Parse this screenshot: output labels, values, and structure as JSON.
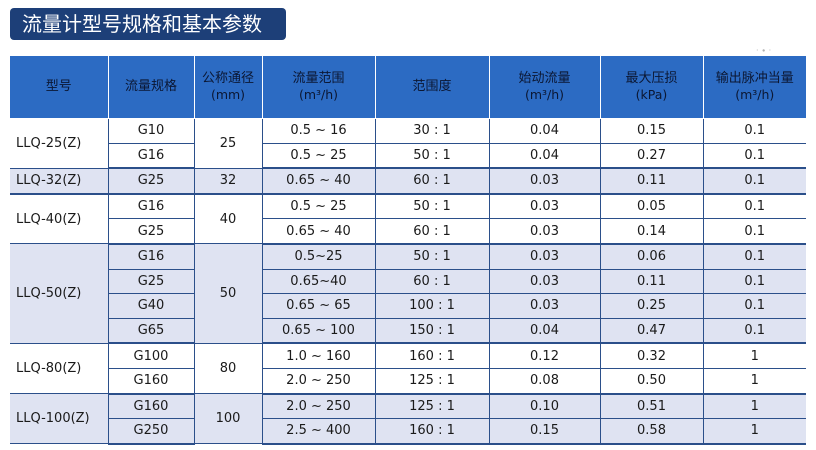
{
  "title": "流量计型号规格和基本参数",
  "table": {
    "headers": {
      "model": "型号",
      "spec": "流量规格",
      "diameter": "公称通径",
      "diameter_unit": "(mm)",
      "range": "流量范围",
      "range_unit": "(m³/h)",
      "rangeability": "范围度",
      "start_flow": "始动流量",
      "start_flow_unit": "(m³/h)",
      "max_loss": "最大压损",
      "max_loss_unit": "(kPa)",
      "pulse": "输出脉冲当量",
      "pulse_unit": "(m³/h)"
    },
    "groups": [
      {
        "model": "LLQ-25(Z)",
        "diameter": "25",
        "shaded": false,
        "rows": [
          {
            "spec": "G10",
            "range": "0.5 ~ 16",
            "rangeability": "30 : 1",
            "start_flow": "0.04",
            "max_loss": "0.15",
            "pulse": "0.1"
          },
          {
            "spec": "G16",
            "range": "0.5 ~ 25",
            "rangeability": "50 : 1",
            "start_flow": "0.04",
            "max_loss": "0.27",
            "pulse": "0.1"
          }
        ]
      },
      {
        "model": "LLQ-32(Z)",
        "diameter": "32",
        "shaded": true,
        "rows": [
          {
            "spec": "G25",
            "range": "0.65 ~ 40",
            "rangeability": "60 : 1",
            "start_flow": "0.03",
            "max_loss": "0.11",
            "pulse": "0.1"
          }
        ]
      },
      {
        "model": "LLQ-40(Z)",
        "diameter": "40",
        "shaded": false,
        "rows": [
          {
            "spec": "G16",
            "range": "0.5 ~ 25",
            "rangeability": "50 : 1",
            "start_flow": "0.03",
            "max_loss": "0.05",
            "pulse": "0.1"
          },
          {
            "spec": "G25",
            "range": "0.65 ~ 40",
            "rangeability": "60 : 1",
            "start_flow": "0.03",
            "max_loss": "0.14",
            "pulse": "0.1"
          }
        ]
      },
      {
        "model": "LLQ-50(Z)",
        "diameter": "50",
        "shaded": true,
        "rows": [
          {
            "spec": "G16",
            "range": "0.5~25",
            "rangeability": "50 : 1",
            "start_flow": "0.03",
            "max_loss": "0.06",
            "pulse": "0.1"
          },
          {
            "spec": "G25",
            "range": "0.65~40",
            "rangeability": "60 : 1",
            "start_flow": "0.03",
            "max_loss": "0.11",
            "pulse": "0.1"
          },
          {
            "spec": "G40",
            "range": "0.65 ~ 65",
            "rangeability": "100 : 1",
            "start_flow": "0.03",
            "max_loss": "0.25",
            "pulse": "0.1"
          },
          {
            "spec": "G65",
            "range": "0.65 ~ 100",
            "rangeability": "150 : 1",
            "start_flow": "0.04",
            "max_loss": "0.47",
            "pulse": "0.1"
          }
        ]
      },
      {
        "model": "LLQ-80(Z)",
        "diameter": "80",
        "shaded": false,
        "rows": [
          {
            "spec": "G100",
            "range": "1.0 ~ 160",
            "rangeability": "160 : 1",
            "start_flow": "0.12",
            "max_loss": "0.32",
            "pulse": "1"
          },
          {
            "spec": "G160",
            "range": "2.0 ~ 250",
            "rangeability": "125 : 1",
            "start_flow": "0.08",
            "max_loss": "0.50",
            "pulse": "1"
          }
        ]
      },
      {
        "model": "LLQ-100(Z)",
        "diameter": "100",
        "shaded": true,
        "rows": [
          {
            "spec": "G160",
            "range": "2.0 ~ 250",
            "rangeability": "125 : 1",
            "start_flow": "0.10",
            "max_loss": "0.51",
            "pulse": "1"
          },
          {
            "spec": "G250",
            "range": "2.5 ~ 400",
            "rangeability": "160 : 1",
            "start_flow": "0.15",
            "max_loss": "0.58",
            "pulse": "1"
          }
        ]
      }
    ]
  },
  "colors": {
    "title_bg": "#1d3f78",
    "header_bg": "#2c6bc3",
    "shade_bg": "#dfe3f2",
    "rule": "#2b4f8a"
  }
}
